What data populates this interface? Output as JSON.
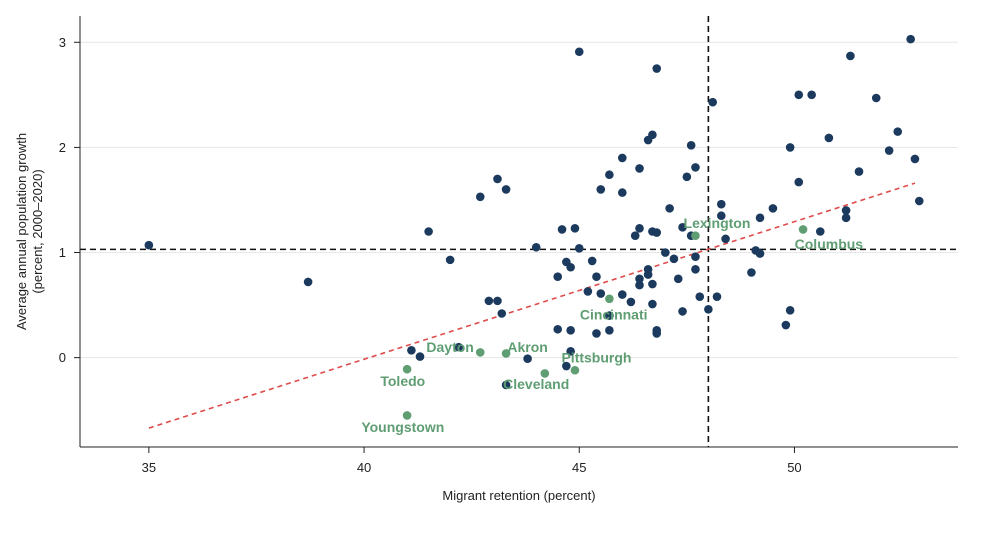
{
  "chart_data": {
    "type": "scatter",
    "title": "",
    "xlabel": "Migrant retention (percent)",
    "ylabel": "Average annual population growth",
    "ylabel_sub": "(percent, 2000–2020)",
    "xlim": [
      33.4,
      53.8
    ],
    "ylim": [
      -0.85,
      3.25
    ],
    "x_ticks": [
      35,
      40,
      45,
      50
    ],
    "y_ticks": [
      0,
      1,
      2,
      3
    ],
    "grid": "horizontal",
    "colors": {
      "points": "#1b3a5e",
      "highlight": "#5f9e73",
      "trend": "#e04b4b",
      "reference": "#111111",
      "grid": "#e6e6e6"
    },
    "reference_lines": {
      "x": 48.0,
      "y": 1.03
    },
    "trendline": {
      "x": [
        35,
        52.8
      ],
      "y": [
        -0.67,
        1.66
      ]
    },
    "series": [
      {
        "points": [
          [
            35.0,
            1.07
          ],
          [
            38.7,
            0.72
          ],
          [
            41.1,
            0.07
          ],
          [
            41.3,
            0.01
          ],
          [
            41.5,
            1.2
          ],
          [
            42.0,
            0.93
          ],
          [
            42.2,
            0.1
          ],
          [
            42.7,
            1.53
          ],
          [
            42.9,
            0.54
          ],
          [
            43.1,
            1.7
          ],
          [
            43.1,
            0.54
          ],
          [
            43.2,
            0.42
          ],
          [
            43.3,
            1.6
          ],
          [
            43.3,
            -0.26
          ],
          [
            43.8,
            -0.01
          ],
          [
            44.0,
            1.05
          ],
          [
            44.5,
            0.77
          ],
          [
            44.5,
            0.27
          ],
          [
            44.6,
            1.22
          ],
          [
            44.7,
            -0.08
          ],
          [
            44.7,
            0.91
          ],
          [
            44.8,
            0.86
          ],
          [
            44.8,
            0.26
          ],
          [
            44.8,
            0.06
          ],
          [
            44.9,
            1.23
          ],
          [
            45.0,
            1.04
          ],
          [
            45.0,
            2.91
          ],
          [
            45.2,
            0.63
          ],
          [
            45.3,
            0.92
          ],
          [
            45.4,
            0.77
          ],
          [
            45.4,
            0.23
          ],
          [
            45.5,
            0.61
          ],
          [
            45.5,
            1.6
          ],
          [
            45.7,
            1.74
          ],
          [
            45.7,
            0.4
          ],
          [
            45.7,
            0.26
          ],
          [
            46.0,
            0.6
          ],
          [
            46.0,
            1.9
          ],
          [
            46.0,
            1.57
          ],
          [
            46.2,
            0.53
          ],
          [
            46.3,
            1.16
          ],
          [
            46.4,
            1.23
          ],
          [
            46.4,
            1.8
          ],
          [
            46.4,
            0.75
          ],
          [
            46.4,
            0.69
          ],
          [
            46.6,
            0.79
          ],
          [
            46.6,
            0.84
          ],
          [
            46.6,
            2.07
          ],
          [
            46.7,
            2.12
          ],
          [
            46.7,
            0.51
          ],
          [
            46.7,
            1.2
          ],
          [
            46.7,
            0.7
          ],
          [
            46.8,
            1.19
          ],
          [
            46.8,
            2.75
          ],
          [
            46.8,
            0.23
          ],
          [
            46.8,
            0.26
          ],
          [
            47.0,
            1.0
          ],
          [
            47.1,
            1.42
          ],
          [
            47.2,
            0.94
          ],
          [
            47.3,
            0.75
          ],
          [
            47.4,
            0.44
          ],
          [
            47.4,
            1.24
          ],
          [
            47.5,
            1.72
          ],
          [
            47.6,
            2.02
          ],
          [
            47.6,
            1.16
          ],
          [
            47.7,
            1.81
          ],
          [
            47.7,
            0.96
          ],
          [
            47.7,
            0.84
          ],
          [
            47.8,
            0.58
          ],
          [
            48.0,
            0.46
          ],
          [
            48.1,
            2.43
          ],
          [
            48.2,
            0.58
          ],
          [
            48.3,
            1.35
          ],
          [
            48.3,
            1.46
          ],
          [
            48.4,
            1.13
          ],
          [
            49.0,
            0.81
          ],
          [
            49.1,
            1.02
          ],
          [
            49.2,
            0.99
          ],
          [
            49.2,
            1.33
          ],
          [
            49.5,
            1.42
          ],
          [
            49.8,
            0.31
          ],
          [
            49.9,
            0.45
          ],
          [
            49.9,
            2.0
          ],
          [
            50.1,
            1.67
          ],
          [
            50.1,
            2.5
          ],
          [
            50.4,
            2.5
          ],
          [
            50.6,
            1.2
          ],
          [
            50.8,
            2.09
          ],
          [
            51.2,
            1.4
          ],
          [
            51.2,
            1.33
          ],
          [
            51.3,
            2.87
          ],
          [
            51.5,
            1.77
          ],
          [
            51.9,
            2.47
          ],
          [
            52.2,
            1.97
          ],
          [
            52.4,
            2.15
          ],
          [
            52.7,
            3.03
          ],
          [
            52.8,
            1.89
          ],
          [
            52.9,
            1.49
          ]
        ]
      },
      {
        "points": [
          [
            41.0,
            -0.55
          ],
          [
            41.0,
            -0.11
          ],
          [
            42.7,
            0.05
          ],
          [
            43.3,
            0.04
          ],
          [
            44.2,
            -0.15
          ],
          [
            44.9,
            -0.12
          ],
          [
            45.7,
            0.56
          ],
          [
            47.7,
            1.16
          ],
          [
            50.2,
            1.22
          ]
        ]
      }
    ],
    "annotations": [
      {
        "text": "Youngstown",
        "x": 40.9,
        "y": -0.66,
        "anchor": "middle"
      },
      {
        "text": "Toledo",
        "x": 40.9,
        "y": -0.22,
        "anchor": "middle"
      },
      {
        "text": "Dayton",
        "x": 42.0,
        "y": 0.1,
        "anchor": "middle"
      },
      {
        "text": "Akron",
        "x": 43.8,
        "y": 0.1,
        "anchor": "middle"
      },
      {
        "text": "Cleveland",
        "x": 44.0,
        "y": -0.25,
        "anchor": "middle"
      },
      {
        "text": "Pittsburgh",
        "x": 45.4,
        "y": -0.0,
        "anchor": "middle"
      },
      {
        "text": "Cincinnati",
        "x": 45.8,
        "y": 0.41,
        "anchor": "middle"
      },
      {
        "text": "Lexington",
        "x": 48.2,
        "y": 1.28,
        "anchor": "middle"
      },
      {
        "text": "Columbus",
        "x": 50.8,
        "y": 1.08,
        "anchor": "middle"
      }
    ]
  }
}
